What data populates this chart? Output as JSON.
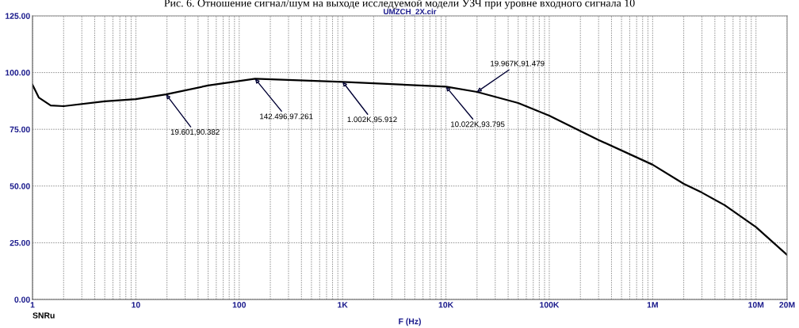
{
  "chart_data": {
    "type": "line",
    "title": "UMZCH_2X.cir",
    "xlabel": "F (Hz)",
    "annotations": [
      "Рис. 6. Отношение сигнал/шум на выходе исследуемой модели УЗЧ при уровне входного сигнала 10",
      {
        "text": "19.601,90.382",
        "x": 19.601,
        "y": 90.382
      },
      {
        "text": "142.496,97.261",
        "x": 142.496,
        "y": 97.261
      },
      {
        "text": "1.002K,95.912",
        "x": 1002,
        "y": 95.912
      },
      {
        "text": "10.022K,93.795",
        "x": 10022,
        "y": 93.795
      },
      {
        "text": "19.967K,91.479",
        "x": 19967,
        "y": 91.479
      }
    ],
    "x": [
      1,
      1.15,
      1.5,
      2,
      5,
      10,
      19.601,
      50,
      142.496,
      1002,
      10022,
      19967,
      50000,
      100000,
      300000,
      1000000,
      2000000,
      3000000,
      5000000,
      10000000,
      20000000
    ],
    "series": [
      {
        "name": "SNRu",
        "color": "#000000",
        "values": [
          94.6,
          89,
          85.5,
          85.2,
          87.3,
          88.3,
          90.382,
          94.3,
          97.261,
          95.912,
          93.795,
          91.479,
          86.6,
          81,
          70.3,
          59.4,
          51,
          47.1,
          41.5,
          31.9,
          19.6
        ]
      }
    ],
    "log": "x",
    "grid": true,
    "legend": false,
    "marker": "none",
    "line_style": "solid",
    "xlim": [
      1,
      20000000
    ],
    "ylim": [
      0,
      125
    ],
    "xticks": [
      1,
      10,
      100,
      {
        "value": 1000,
        "label": "1K"
      },
      {
        "value": 10000,
        "label": "10K"
      },
      {
        "value": 100000,
        "label": "100K"
      },
      {
        "value": 1000000,
        "label": "1M"
      },
      {
        "value": 10000000,
        "label": "10M"
      },
      {
        "value": 20000000,
        "label": "20M"
      }
    ],
    "yticks": [
      {
        "value": 0,
        "label": "0.00"
      },
      {
        "value": 25,
        "label": "25.00"
      },
      {
        "value": 50,
        "label": "50.00"
      },
      {
        "value": 75,
        "label": "75.00"
      },
      {
        "value": 100,
        "label": "100.00"
      },
      {
        "value": 125,
        "label": "125.00"
      }
    ]
  }
}
